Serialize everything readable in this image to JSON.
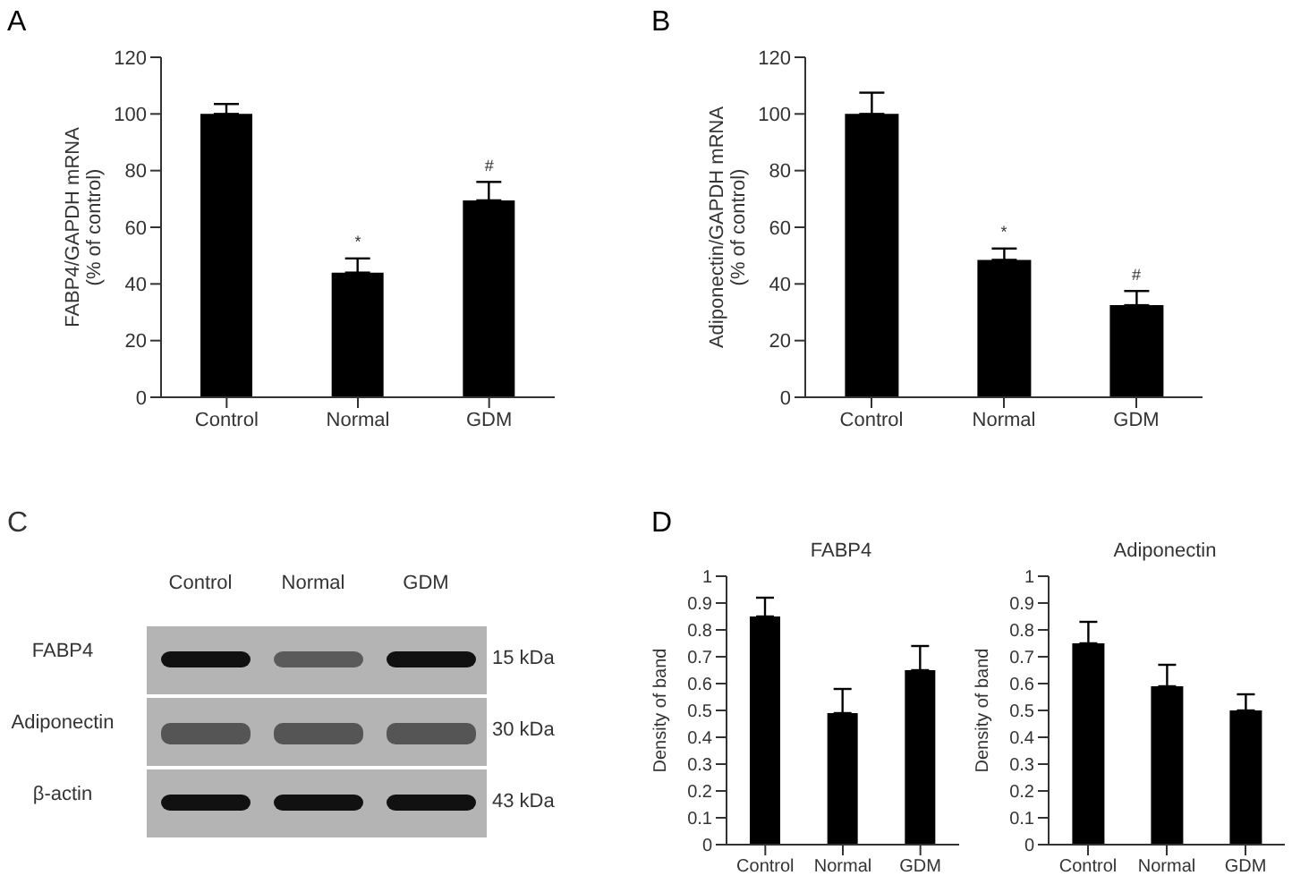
{
  "chart_data": [
    {
      "type": "bar",
      "ylabel": "FABP4/GAPDH mRNA\n(% of control)",
      "categories": [
        "Control",
        "Normal",
        "GDM"
      ],
      "values": [
        100,
        44,
        69.5
      ],
      "color": "#000000",
      "errors": [
        [
          100,
          103.5
        ],
        [
          44,
          49
        ],
        [
          69.5,
          76
        ]
      ],
      "ylim": [
        0,
        120
      ],
      "yticks": [
        0,
        20,
        40,
        60,
        80,
        100,
        120
      ],
      "annotations": [
        "A",
        "*",
        "#"
      ]
    },
    {
      "type": "bar",
      "ylabel": "Adiponectin/GAPDH mRNA\n(% of control)",
      "categories": [
        "Control",
        "Normal",
        "GDM"
      ],
      "values": [
        100,
        48.5,
        32.5
      ],
      "color": "#000000",
      "errors": [
        [
          100,
          107.5
        ],
        [
          48.5,
          52.5
        ],
        [
          32.5,
          37.5
        ]
      ],
      "ylim": [
        0,
        120
      ],
      "yticks": [
        0,
        20,
        40,
        60,
        80,
        100,
        120
      ],
      "annotations": [
        "B",
        "*",
        "#"
      ]
    },
    {
      "type": "other",
      "categories": [
        "Control",
        "Normal",
        "GDM"
      ],
      "y_categories": [
        "FABP4",
        "Adiponectin",
        "β-actin"
      ],
      "y2_categories": [
        "15 kDa",
        "30 kDa",
        "43 kDa"
      ],
      "annotations": [
        "C"
      ]
    },
    {
      "type": "bar",
      "title": "FABP4",
      "ylabel": "Density of band",
      "categories": [
        "Control",
        "Normal",
        "GDM"
      ],
      "values": [
        0.85,
        0.49,
        0.65
      ],
      "color": "#000000",
      "errors": [
        [
          0.85,
          0.92
        ],
        [
          0.49,
          0.58
        ],
        [
          0.65,
          0.74
        ]
      ],
      "ylim": [
        0,
        1
      ],
      "yticks": [
        0,
        0.1,
        0.2,
        0.3,
        0.4,
        0.5,
        0.6,
        0.7,
        0.8,
        0.9,
        1
      ],
      "annotations": [
        "D"
      ]
    },
    {
      "type": "bar",
      "title": "Adiponectin",
      "ylabel": "Density of band",
      "categories": [
        "Control",
        "Normal",
        "GDM"
      ],
      "values": [
        0.75,
        0.59,
        0.5
      ],
      "color": "#000000",
      "errors": [
        [
          0.75,
          0.83
        ],
        [
          0.59,
          0.67
        ],
        [
          0.5,
          0.56
        ]
      ],
      "ylim": [
        0,
        1
      ],
      "yticks": [
        0,
        0.1,
        0.2,
        0.3,
        0.4,
        0.5,
        0.6,
        0.7,
        0.8,
        0.9,
        1
      ]
    }
  ]
}
